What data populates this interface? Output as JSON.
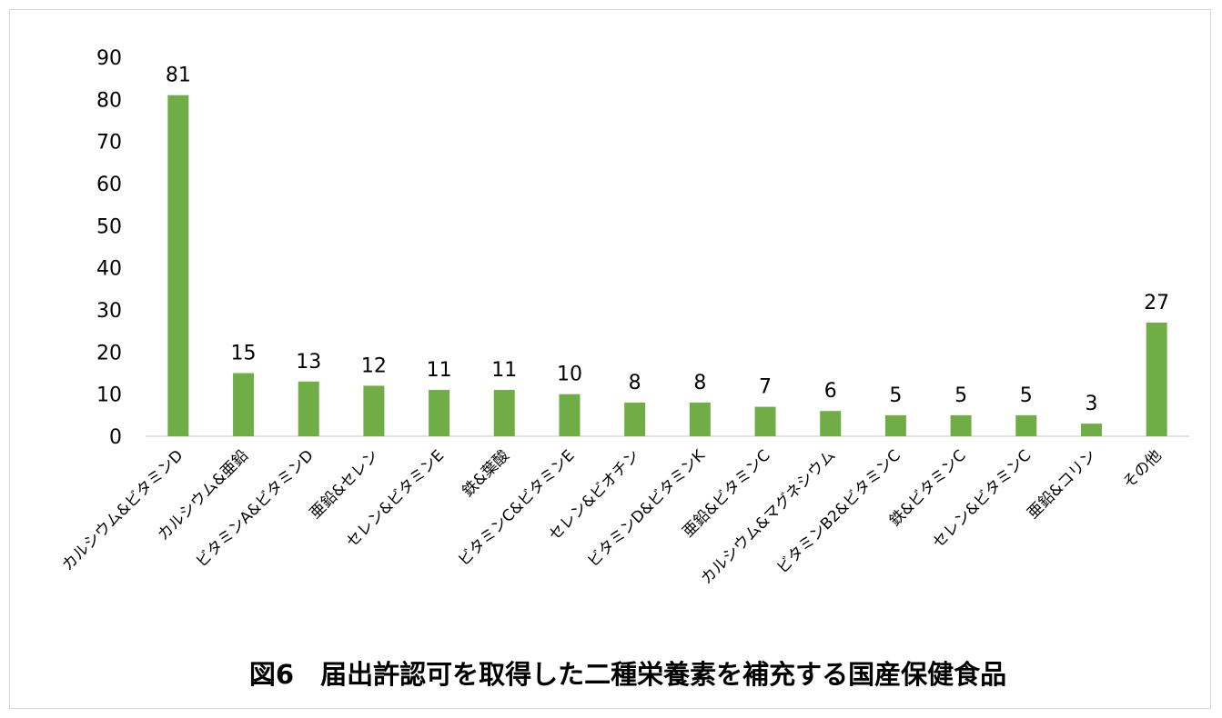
{
  "chart_data": {
    "type": "bar",
    "title": "図6　届出許認可を取得した二種栄養素を補充する国産保健食品",
    "xlabel": "",
    "ylabel": "",
    "ylim": [
      0,
      90
    ],
    "yticks": [
      0,
      10,
      20,
      30,
      40,
      50,
      60,
      70,
      80,
      90
    ],
    "grid": false,
    "legend": "none",
    "bar_color": "#70ad47",
    "categories": [
      "カルシウム&ビタミンD",
      "カルシウム&亜鉛",
      "ビタミンA&ビタミンD",
      "亜鉛&セレン",
      "セレン&ビタミンE",
      "鉄&葉酸",
      "ビタミンC&ビタミンE",
      "セレン&ビオチン",
      "ビタミンD&ビタミンK",
      "亜鉛&ビタミンC",
      "カルシウム&マグネシウム",
      "ビタミンB2&ビタミンC",
      "鉄&ビタミンC",
      "セレン&ビタミンC",
      "亜鉛&コリン",
      "その他"
    ],
    "values": [
      81,
      15,
      13,
      12,
      11,
      11,
      10,
      8,
      8,
      7,
      6,
      5,
      5,
      5,
      3,
      27
    ]
  }
}
